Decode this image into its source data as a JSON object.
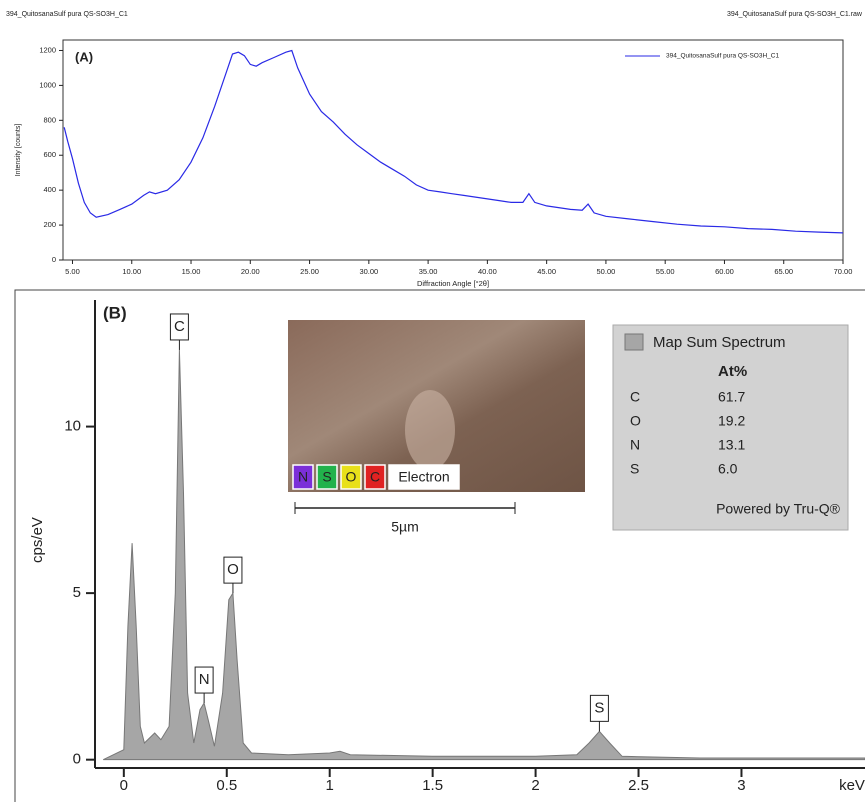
{
  "chart_data": [
    {
      "type": "line",
      "header_left": "394_QuitosanaSulf pura QS-SO3H_C1",
      "header_right": "394_QuitosanaSulf pura QS-SO3H_C1.raw",
      "panel_label": "(A)",
      "xlabel": "Diffraction Angle [°2θ]",
      "ylabel": "Intensity [counts]",
      "x": [
        4.3,
        4.6,
        5,
        5.5,
        6,
        6.5,
        7,
        8,
        9,
        10,
        11,
        11.5,
        12,
        13,
        14,
        15,
        16,
        17,
        18,
        18.5,
        19,
        19.5,
        20,
        20.5,
        21,
        22,
        23,
        23.5,
        24,
        25,
        26,
        27,
        28,
        29,
        30,
        31,
        32,
        33,
        34,
        35,
        36,
        37,
        38,
        39,
        40,
        41,
        42,
        43,
        43.5,
        44,
        45,
        46,
        47,
        48,
        48.5,
        49,
        50,
        52,
        54,
        56,
        58,
        60,
        62,
        64,
        66,
        68,
        70
      ],
      "series": [
        {
          "name": "394_QuitosanaSulf pura QS-SO3H_C1",
          "color": "#2a2ae6",
          "values": [
            760,
            680,
            580,
            440,
            330,
            270,
            245,
            260,
            290,
            320,
            370,
            390,
            380,
            400,
            460,
            560,
            700,
            880,
            1080,
            1180,
            1190,
            1170,
            1120,
            1110,
            1130,
            1160,
            1190,
            1200,
            1100,
            950,
            850,
            790,
            720,
            660,
            610,
            560,
            520,
            480,
            430,
            400,
            390,
            380,
            370,
            360,
            350,
            340,
            330,
            330,
            380,
            330,
            310,
            300,
            290,
            285,
            320,
            270,
            250,
            235,
            220,
            205,
            195,
            190,
            180,
            175,
            165,
            160,
            155
          ]
        }
      ],
      "xlim": [
        4.2,
        70
      ],
      "ylim": [
        0,
        1260
      ],
      "xticks": [
        {
          "value": 5,
          "label": "5.00"
        },
        {
          "value": 10,
          "label": "10.00"
        },
        {
          "value": 15,
          "label": "15.00"
        },
        {
          "value": 20,
          "label": "20.00"
        },
        {
          "value": 25,
          "label": "25.00"
        },
        {
          "value": 30,
          "label": "30.00"
        },
        {
          "value": 35,
          "label": "35.00"
        },
        {
          "value": 40,
          "label": "40.00"
        },
        {
          "value": 45,
          "label": "45.00"
        },
        {
          "value": 50,
          "label": "50.00"
        },
        {
          "value": 55,
          "label": "55.00"
        },
        {
          "value": 60,
          "label": "60.00"
        },
        {
          "value": 65,
          "label": "65.00"
        },
        {
          "value": 70,
          "label": "70.00"
        }
      ],
      "yticks": [
        0,
        200,
        400,
        600,
        800,
        1000,
        1200
      ]
    },
    {
      "type": "area",
      "panel_label": "(B)",
      "xlabel": "keV",
      "ylabel": "cps/eV",
      "x": [
        -0.1,
        0,
        0.02,
        0.04,
        0.06,
        0.08,
        0.1,
        0.15,
        0.18,
        0.22,
        0.25,
        0.27,
        0.29,
        0.31,
        0.34,
        0.37,
        0.39,
        0.41,
        0.44,
        0.48,
        0.51,
        0.53,
        0.55,
        0.58,
        0.62,
        0.8,
        1.0,
        1.05,
        1.1,
        1.5,
        2.0,
        2.2,
        2.26,
        2.31,
        2.36,
        2.42,
        2.8,
        3.6
      ],
      "series": [
        {
          "name": "Map Sum Spectrum",
          "color": "#a6a6a6",
          "values": [
            0,
            0.3,
            4,
            6.5,
            4,
            1,
            0.5,
            0.8,
            0.6,
            1,
            5,
            12.3,
            8,
            2,
            0.5,
            1.5,
            1.7,
            1.2,
            0.4,
            2,
            4.8,
            5,
            3,
            0.5,
            0.2,
            0.15,
            0.2,
            0.25,
            0.15,
            0.1,
            0.1,
            0.15,
            0.5,
            0.85,
            0.5,
            0.1,
            0.05,
            0.05
          ]
        }
      ],
      "xlim": [
        -0.14,
        3.6
      ],
      "ylim": [
        -0.25,
        13.8
      ],
      "xticks": [
        0,
        0.5,
        1,
        1.5,
        2,
        2.5,
        3
      ],
      "yticks": [
        0,
        5,
        10
      ],
      "annotations": [
        {
          "label": "C",
          "x": 0.27,
          "y": 12.3
        },
        {
          "label": "N",
          "x": 0.39,
          "y": 1.7
        },
        {
          "label": "O",
          "x": 0.53,
          "y": 5
        },
        {
          "label": "S",
          "x": 2.31,
          "y": 0.85
        }
      ],
      "inset": {
        "legend": [
          "N",
          "S",
          "O",
          "C",
          "Electron"
        ],
        "legend_colors": [
          "#7b2fd8",
          "#22b24c",
          "#e8e01a",
          "#e02222",
          "#ffffff"
        ],
        "scale_bar": "5µm"
      },
      "quant": {
        "header": "At%",
        "elements": [
          "C",
          "O",
          "N",
          "S"
        ],
        "values": [
          "61.7",
          "19.2",
          "13.1",
          "6.0"
        ],
        "footer": "Powered by Tru-Q®"
      }
    }
  ]
}
